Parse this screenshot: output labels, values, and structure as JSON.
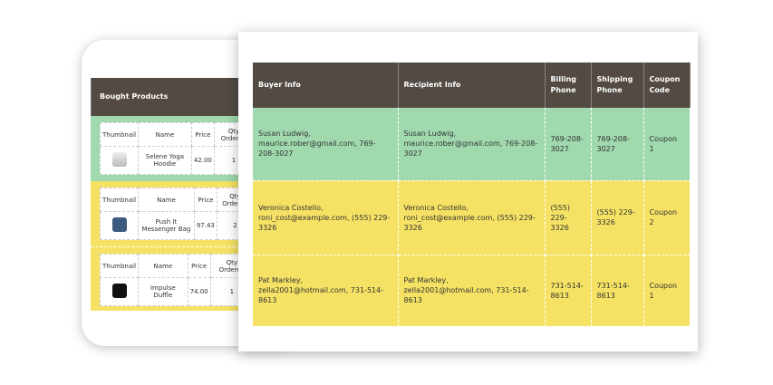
{
  "back": {
    "header": "Bought Products",
    "columns": [
      "Thumbnail",
      "Name",
      "Price",
      "Qty Ordered"
    ],
    "products": [
      {
        "name": "Selene Yoga Hoodie",
        "price": "42.00",
        "qty": "1",
        "thumb": "person-icon"
      },
      {
        "name": "Push It Messenger Bag",
        "price": "97.43",
        "qty": "2",
        "thumb": "bag-icon"
      },
      {
        "name": "Impulse Duffle",
        "price": "74.00",
        "qty": "1",
        "thumb": "duffle-icon"
      }
    ]
  },
  "table": {
    "columns": [
      "Buyer Info",
      "Recipient Info",
      "Billing Phone",
      "Shipping Phone",
      "Coupon Code"
    ],
    "rows": [
      {
        "buyer": "Susan Ludwig, maurice.rober@gmail.com, 769-208-3027",
        "recipient": "Susan Ludwig, maurice.rober@gmail.com, 769-208-3027",
        "billing": "769-208-3027",
        "shipping": "769-208-3027",
        "coupon": "Coupon 1"
      },
      {
        "buyer": "Veronica Costello, roni_cost@example.com, (555) 229-3326",
        "recipient": "Veronica Costello, roni_cost@example.com, (555) 229-3326",
        "billing": "(555) 229-3326",
        "shipping": "(555) 229-3326",
        "coupon": "Coupon 2"
      },
      {
        "buyer": "Pat Markley, zella2001@hotmail.com, 731-514-8613",
        "recipient": "Pat Markley, zella2001@hotmail.com, 731-514-8613",
        "billing": "731-514-8613",
        "shipping": "731-514-8613",
        "coupon": "Coupon 1"
      }
    ]
  },
  "colors": {
    "header": "#524a43",
    "green": "#9fd9ad",
    "yellow": "#f5e264"
  }
}
